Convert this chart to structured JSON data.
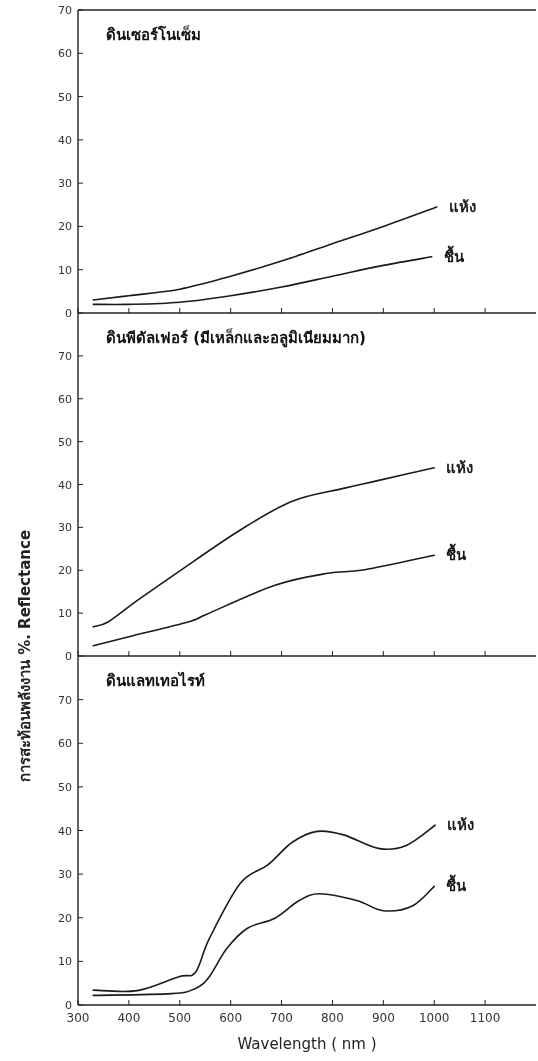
{
  "chart_data": [
    {
      "type": "line",
      "title": "ดินเซอร์โนเซ็ม",
      "xlim": [
        300,
        1200
      ],
      "xticks": [
        300,
        400,
        500,
        600,
        700,
        800,
        900,
        1000,
        1100
      ],
      "ylim": [
        0,
        70
      ],
      "yticks": [
        0,
        10,
        20,
        30,
        40,
        50,
        60,
        70
      ],
      "tick_labels": "y",
      "series": [
        {
          "name": "แห้ง",
          "color": "#1a1a1a",
          "x": [
            330,
            400,
            500,
            600,
            700,
            800,
            900,
            1005
          ],
          "values": [
            3,
            4,
            5.5,
            8.5,
            12,
            16,
            20,
            24.5
          ]
        },
        {
          "name": "ชื้น",
          "color": "#1a1a1a",
          "x": [
            330,
            400,
            500,
            600,
            700,
            800,
            900,
            995
          ],
          "values": [
            2,
            2,
            2.5,
            4,
            6,
            8.5,
            11,
            13
          ]
        }
      ]
    },
    {
      "type": "line",
      "title": "ดินพีดัลเฟอร์ (มีเหล็กและอลูมิเนียมมาก)",
      "ylabel": "การสะท้อนพลังงาน   %. Reflectance",
      "xlim": [
        300,
        1200
      ],
      "xticks": [
        300,
        400,
        500,
        600,
        700,
        800,
        900,
        1000,
        1100
      ],
      "ylim": [
        0,
        80
      ],
      "yticks": [
        0,
        10,
        20,
        30,
        40,
        50,
        60,
        70
      ],
      "tick_labels": "y",
      "series": [
        {
          "name": "แห้ง",
          "color": "#1a1a1a",
          "x": [
            330,
            360,
            416,
            498,
            619,
            721,
            822,
            889,
            1000
          ],
          "values": [
            6.8,
            8,
            12.9,
            19.7,
            29.4,
            36.1,
            39.1,
            40.9,
            43.9
          ]
        },
        {
          "name": "ชื้น",
          "color": "#1a1a1a",
          "x": [
            330,
            400,
            518,
            552,
            687,
            791,
            863,
            1000
          ],
          "values": [
            2.4,
            4.5,
            8,
            9.7,
            16.5,
            19.3,
            20.1,
            23.5
          ]
        }
      ]
    },
    {
      "type": "line",
      "title": "ดินแลทเทอไรท์",
      "xlabel": "Wavelength ( nm )",
      "xlim": [
        300,
        1200
      ],
      "xticks": [
        300,
        400,
        500,
        600,
        700,
        800,
        900,
        1000,
        1100
      ],
      "ylim": [
        0,
        80
      ],
      "yticks": [
        0,
        10,
        20,
        30,
        40,
        50,
        60,
        70
      ],
      "series": [
        {
          "name": "แห้ง",
          "color": "#1a1a1a",
          "x": [
            330,
            417,
            498,
            531,
            558,
            619,
            673,
            721,
            770,
            822,
            890,
            944,
            1002
          ],
          "values": [
            3.4,
            3.3,
            6.5,
            7.5,
            15.2,
            27.9,
            32.1,
            37.3,
            39.8,
            39,
            35.9,
            36.5,
            41.2
          ]
        },
        {
          "name": "ชื้น",
          "color": "#1a1a1a",
          "x": [
            330,
            484,
            531,
            558,
            592,
            633,
            687,
            734,
            775,
            849,
            900,
            957,
            1000
          ],
          "values": [
            2.2,
            2.6,
            3.8,
            6.5,
            12.9,
            17.6,
            19.9,
            23.9,
            25.5,
            23.9,
            21.6,
            22.7,
            27.2
          ]
        }
      ]
    }
  ]
}
